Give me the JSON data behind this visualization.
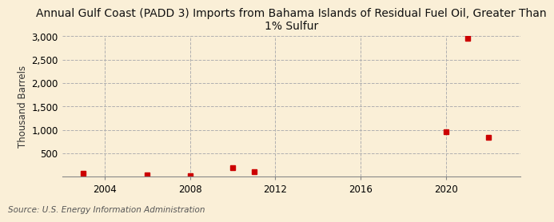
{
  "title": "Annual Gulf Coast (PADD 3) Imports from Bahama Islands of Residual Fuel Oil, Greater Than\n1% Sulfur",
  "ylabel": "Thousand Barrels",
  "source": "Source: U.S. Energy Information Administration",
  "background_color": "#faefd7",
  "plot_background_color": "#faefd7",
  "data_points": [
    {
      "year": 2003,
      "value": 75
    },
    {
      "year": 2006,
      "value": 30
    },
    {
      "year": 2008,
      "value": 18
    },
    {
      "year": 2010,
      "value": 198
    },
    {
      "year": 2011,
      "value": 108
    },
    {
      "year": 2020,
      "value": 960
    },
    {
      "year": 2021,
      "value": 2960
    },
    {
      "year": 2022,
      "value": 840
    }
  ],
  "marker_color": "#cc0000",
  "marker_size": 5,
  "marker_style": "s",
  "xlim": [
    2002.0,
    2023.5
  ],
  "ylim": [
    0,
    3000
  ],
  "xticks": [
    2004,
    2008,
    2012,
    2016,
    2020
  ],
  "yticks": [
    0,
    500,
    1000,
    1500,
    2000,
    2500,
    3000
  ],
  "ytick_labels": [
    "",
    "500",
    "1,000",
    "1,500",
    "2,000",
    "2,500",
    "3,000"
  ],
  "grid_color": "#b0b0b0",
  "grid_style": "--",
  "title_fontsize": 10,
  "axis_label_fontsize": 8.5,
  "tick_fontsize": 8.5,
  "source_fontsize": 7.5
}
